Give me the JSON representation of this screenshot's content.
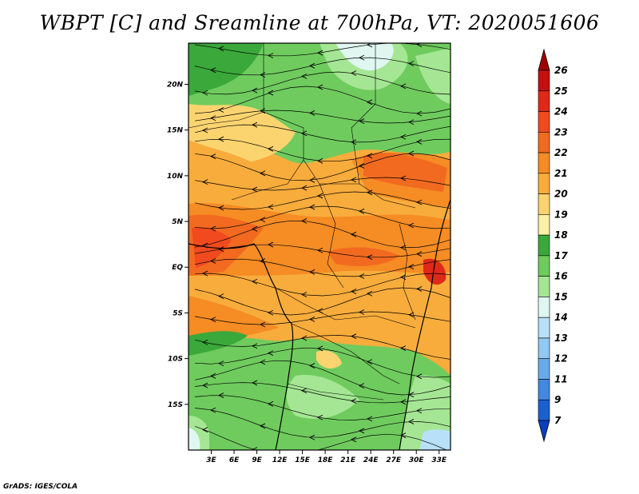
{
  "title": "WBPT [C] and Sreamline at 700hPa, VT: 2020051606",
  "footer": "GrADS: IGES/COLA",
  "map": {
    "lat_labels": [
      "20N",
      "15N",
      "10N",
      "5N",
      "EQ",
      "5S",
      "10S",
      "15S"
    ],
    "lat_values": [
      20,
      15,
      10,
      5,
      0,
      -5,
      -10,
      -15
    ],
    "lon_labels": [
      "3E",
      "6E",
      "9E",
      "12E",
      "15E",
      "18E",
      "21E",
      "24E",
      "27E",
      "30E",
      "33E"
    ],
    "lon_values": [
      3,
      6,
      9,
      12,
      15,
      18,
      21,
      24,
      27,
      30,
      33
    ],
    "lon_range": [
      0,
      34.5
    ],
    "lat_range": [
      -20,
      24.5
    ]
  },
  "colorbar": {
    "labels": [
      "26",
      "25",
      "24",
      "23",
      "22",
      "21",
      "20",
      "19",
      "18",
      "17",
      "16",
      "15",
      "14",
      "13",
      "12",
      "11",
      "9",
      "7"
    ],
    "colors": [
      "#a00000",
      "#c41010",
      "#e02818",
      "#f04a1e",
      "#f26a20",
      "#f58c24",
      "#f8ac3c",
      "#fbd470",
      "#fbf0a6",
      "#3aa83a",
      "#6fcb5e",
      "#a5e694",
      "#dff7f0",
      "#b8e0f8",
      "#92c8f2",
      "#6aaaeb",
      "#4288e0",
      "#1c60d0",
      "#0a40c0"
    ]
  }
}
